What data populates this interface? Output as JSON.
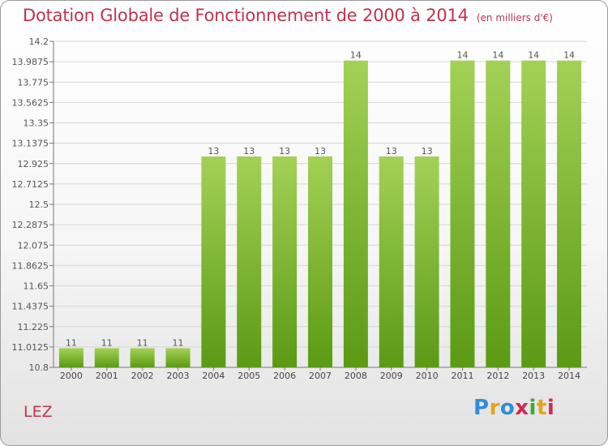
{
  "header": {
    "title": "Dotation Globale de Fonctionnement de 2000 à 2014",
    "unit": "(en milliers d'€)"
  },
  "footer": {
    "commune": "LEZ",
    "logo": "Proxiti"
  },
  "colors": {
    "title": "#c0334d",
    "bar_light": "#a3d156",
    "bar_dark": "#5b9a14"
  },
  "chart_data": {
    "type": "bar",
    "title": "Dotation Globale de Fonctionnement de 2000 à 2014",
    "xlabel": "",
    "ylabel": "(en milliers d'€)",
    "ylim": [
      10.8,
      14.2
    ],
    "grid": true,
    "categories": [
      "2000",
      "2001",
      "2002",
      "2003",
      "2004",
      "2005",
      "2006",
      "2007",
      "2008",
      "2009",
      "2010",
      "2011",
      "2012",
      "2013",
      "2014"
    ],
    "values": [
      11,
      11,
      11,
      11,
      13,
      13,
      13,
      13,
      14,
      13,
      13,
      14,
      14,
      14,
      14
    ],
    "value_labels": [
      "11",
      "11",
      "11",
      "11",
      "13",
      "13",
      "13",
      "13",
      "14",
      "13",
      "13",
      "14",
      "14",
      "14",
      "14"
    ],
    "yticks": [
      "10.8",
      "11.0125",
      "11.225",
      "11.4375",
      "11.65",
      "11.8625",
      "12.075",
      "12.2875",
      "12.5",
      "12.7125",
      "12.925",
      "13.1375",
      "13.35",
      "13.5625",
      "13.775",
      "13.9875",
      "14.2"
    ]
  }
}
